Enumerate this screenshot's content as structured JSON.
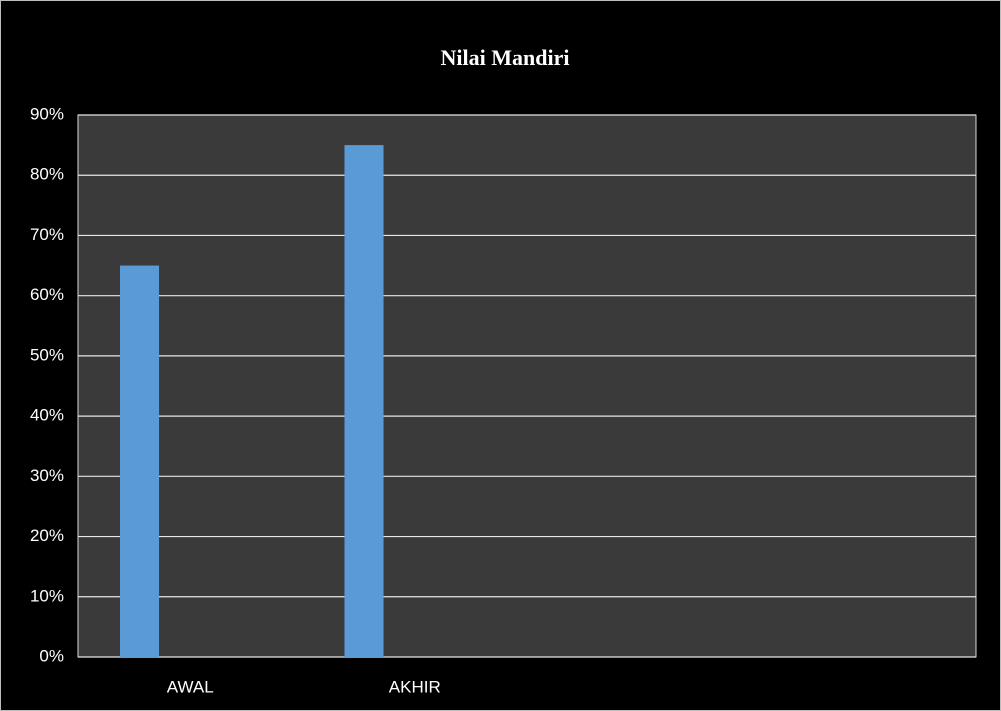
{
  "chart_data": {
    "type": "bar",
    "title": "Nilai Mandiri",
    "categories": [
      "AWAL",
      "AKHIR",
      null,
      null
    ],
    "values": [
      65,
      85,
      null,
      null
    ],
    "color": "#5b9bd5",
    "ylim": [
      0,
      90
    ],
    "yticks": [
      {
        "value": 0,
        "label": "0%"
      },
      {
        "value": 10,
        "label": "10%"
      },
      {
        "value": 20,
        "label": "20%"
      },
      {
        "value": 30,
        "label": "30%"
      },
      {
        "value": 40,
        "label": "40%"
      },
      {
        "value": 50,
        "label": "50%"
      },
      {
        "value": 60,
        "label": "60%"
      },
      {
        "value": 70,
        "label": "70%"
      },
      {
        "value": 80,
        "label": "80%"
      },
      {
        "value": 90,
        "label": "90%"
      }
    ],
    "grid": true
  }
}
